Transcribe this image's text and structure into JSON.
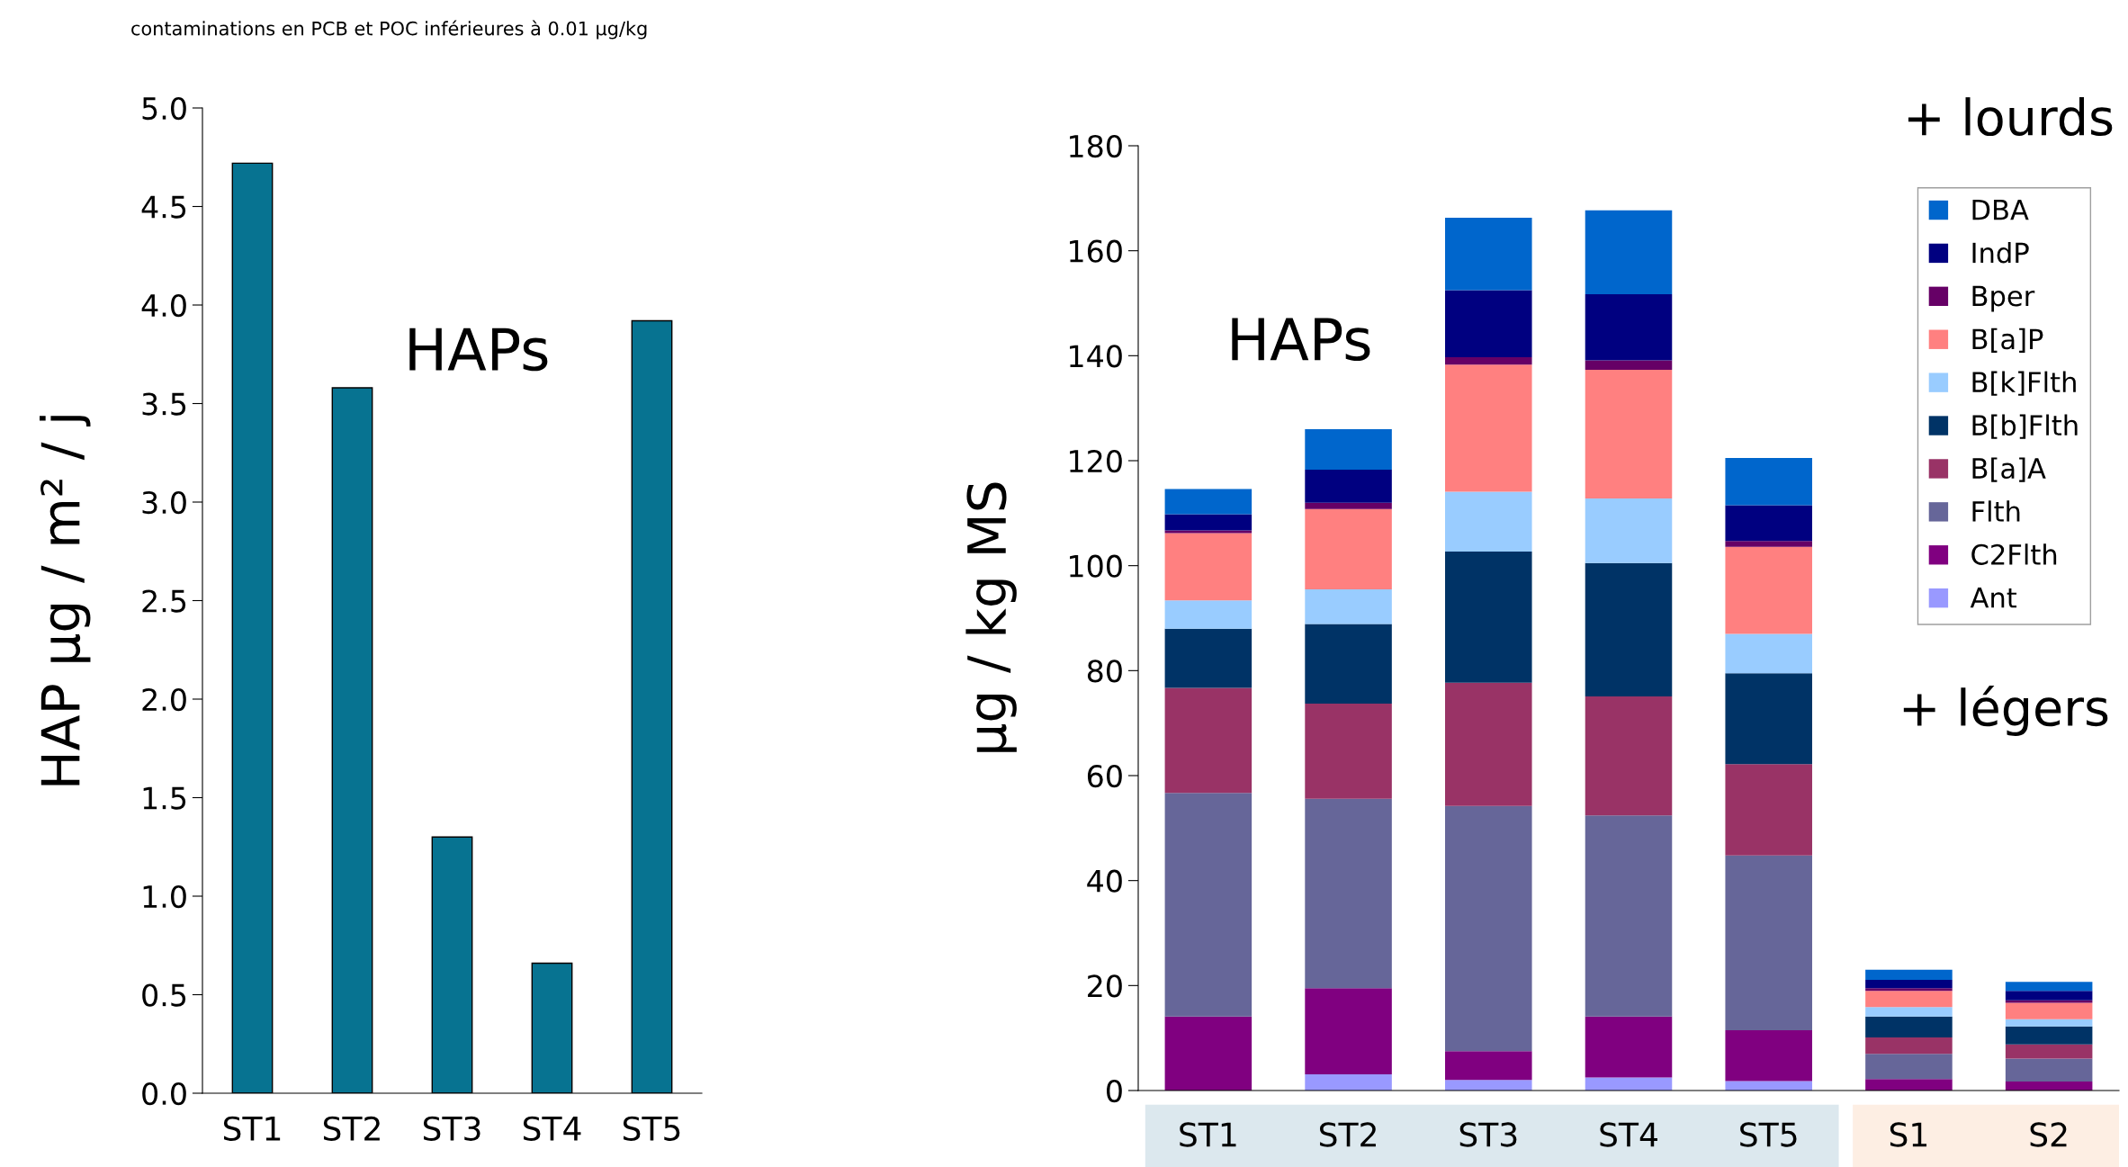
{
  "chart_data": [
    {
      "type": "bar",
      "ylabel": "HAP µg / m² / j",
      "categories": [
        "ST1",
        "ST2",
        "ST3",
        "ST4",
        "ST5"
      ],
      "values": [
        4.72,
        3.58,
        1.3,
        0.66,
        3.92
      ],
      "color": "#077391",
      "ylim": [
        0,
        5
      ],
      "yticks": [
        {
          "value": 0,
          "label": "0.0"
        },
        0.5,
        {
          "value": 1,
          "label": "1.0"
        },
        1.5,
        {
          "value": 2,
          "label": "2.0"
        },
        2.5,
        {
          "value": 3,
          "label": "3.0"
        },
        3.5,
        {
          "value": 4,
          "label": "4.0"
        },
        4.5,
        {
          "value": 5,
          "label": "5.0"
        }
      ],
      "grid": false,
      "annotations": [
        "contaminations en PCB et POC inférieures à 0.01 µg/kg",
        "HAPs"
      ]
    },
    {
      "type": "bar",
      "stacked": true,
      "ylabel": "µg / kg MS",
      "categories": [
        "ST1",
        "ST2",
        "ST3",
        "ST4",
        "ST5",
        "S1",
        "S2"
      ],
      "series": [
        {
          "name": "Ant",
          "color": "#9999ff",
          "values": [
            0,
            3.1,
            2.0,
            2.5,
            1.8,
            0,
            0
          ]
        },
        {
          "name": "C2Flth",
          "color": "#800080",
          "values": [
            14.1,
            16.4,
            5.5,
            11.6,
            9.7,
            2.2,
            1.7
          ]
        },
        {
          "name": "Flth",
          "color": "#666699",
          "values": [
            42.6,
            36.1,
            46.7,
            38.3,
            33.3,
            4.8,
            4.4
          ]
        },
        {
          "name": "B[a]A",
          "color": "#993366",
          "values": [
            20.0,
            18.1,
            23.5,
            22.7,
            17.4,
            3.1,
            2.7
          ]
        },
        {
          "name": "B[b]Flth",
          "color": "#003366",
          "values": [
            11.3,
            15.2,
            25.0,
            25.4,
            17.3,
            4.0,
            3.4
          ]
        },
        {
          "name": "B[k]Flth",
          "color": "#99ccff",
          "values": [
            5.4,
            6.6,
            11.4,
            12.3,
            7.5,
            1.8,
            1.4
          ]
        },
        {
          "name": "B[a]P",
          "color": "#ff8080",
          "values": [
            12.8,
            15.3,
            24.2,
            24.5,
            16.6,
            3.1,
            3.1
          ]
        },
        {
          "name": "Bper",
          "color": "#660066",
          "values": [
            0.5,
            1.2,
            1.4,
            1.8,
            1.1,
            0.5,
            0.5
          ]
        },
        {
          "name": "IndP",
          "color": "#000080",
          "values": [
            3.1,
            6.3,
            12.8,
            12.6,
            6.8,
            1.6,
            1.8
          ]
        },
        {
          "name": "DBA",
          "color": "#0066cc",
          "values": [
            4.8,
            7.7,
            13.8,
            16.0,
            9.0,
            1.9,
            1.7
          ]
        }
      ],
      "ylim": [
        0,
        180
      ],
      "yticks": [
        0,
        20,
        40,
        60,
        80,
        100,
        120,
        140,
        160,
        180
      ],
      "grid": false,
      "legend": "top right",
      "annotations": [
        "HAPs",
        "+ lourds",
        "+ légers"
      ]
    }
  ]
}
